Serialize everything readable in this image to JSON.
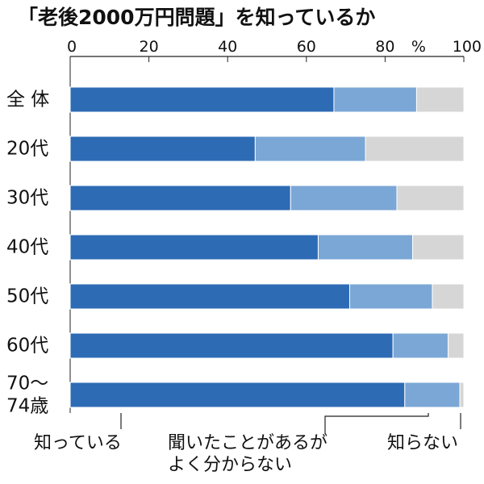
{
  "chart_data": {
    "type": "bar",
    "stacked": true,
    "orientation": "horizontal",
    "title": "「老後2000万円問題」を知っているか",
    "x_unit": "%",
    "xlim": [
      0,
      100
    ],
    "x_ticks": [
      "0",
      "20",
      "40",
      "60",
      "80",
      "100"
    ],
    "grid": false,
    "categories": [
      "全 体",
      "20代",
      "30代",
      "40代",
      "50代",
      "60代",
      "70～\n74歳"
    ],
    "series": [
      {
        "name": "知っている",
        "color": "#2e6bb5",
        "values": [
          67,
          47,
          56,
          63,
          71,
          82,
          85
        ]
      },
      {
        "name": "聞いたことがあるが\nよく分からない",
        "color": "#7ba7d6",
        "values": [
          21,
          28,
          27,
          24,
          21,
          14,
          14
        ]
      },
      {
        "name": "知らない",
        "color": "#d6d6d6",
        "values": [
          12,
          25,
          17,
          13,
          8,
          4,
          1
        ]
      }
    ]
  }
}
